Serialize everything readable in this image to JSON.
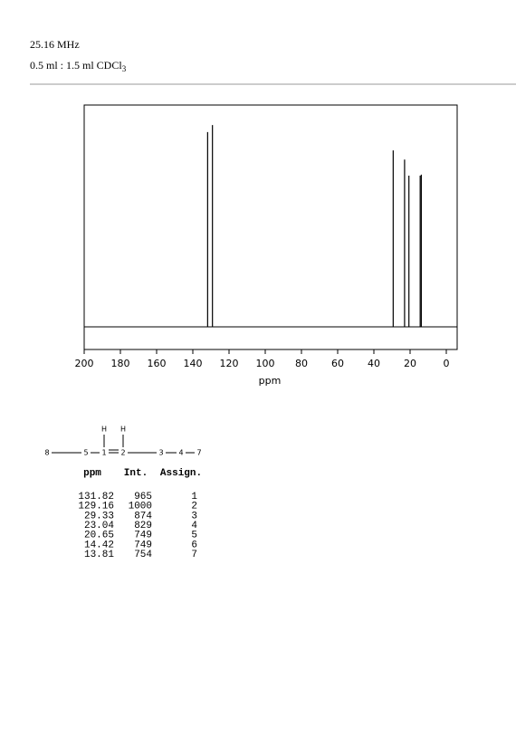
{
  "header": {
    "frequency": "25.16 MHz",
    "solvent": "0.5 ml : 1.5 ml CDCl",
    "solvent_sub": "3"
  },
  "chart_data": {
    "type": "stick",
    "xlabel": "ppm",
    "xlim": [
      200,
      -6
    ],
    "xticks": [
      200,
      180,
      160,
      140,
      120,
      100,
      80,
      60,
      40,
      20,
      0
    ],
    "ylim": [
      -112,
      1099
    ],
    "x": [
      131.82,
      129.16,
      29.33,
      23.04,
      20.65,
      14.42,
      13.81
    ],
    "values": [
      965,
      1000,
      874,
      829,
      749,
      749,
      754
    ],
    "color": "#000000"
  },
  "structure": {
    "atoms": [
      "8",
      "5",
      "1",
      "2",
      "3",
      "4",
      "7"
    ],
    "h": [
      "H",
      "H"
    ]
  },
  "table": {
    "columns": [
      "ppm",
      "Int.",
      "Assign."
    ],
    "assign": [
      "1",
      "2",
      "3",
      "4",
      "5",
      "6",
      "7"
    ]
  }
}
